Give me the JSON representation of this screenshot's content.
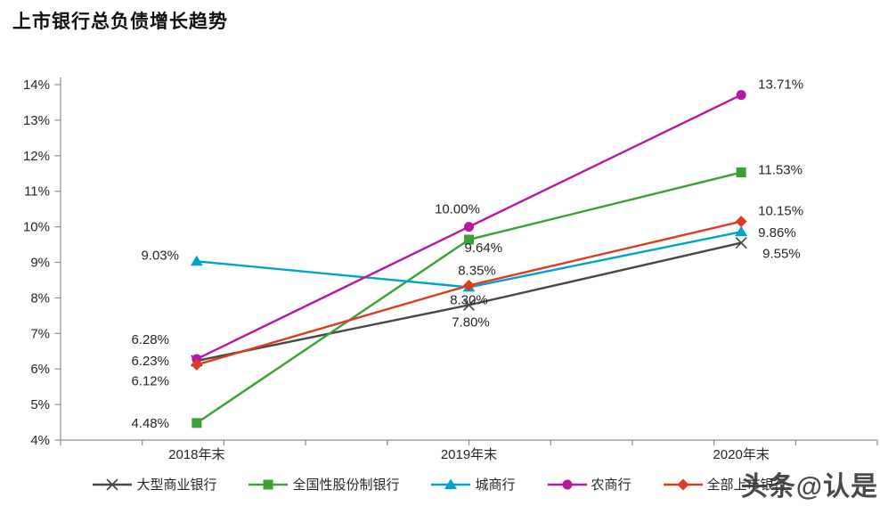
{
  "page": {
    "title": "上市银行总负债增长趋势",
    "watermark": "头条@认是"
  },
  "chart_data": {
    "type": "line",
    "title": "上市银行总负债增长趋势",
    "categories": [
      "2018年末",
      "2019年末",
      "2020年末"
    ],
    "series": [
      {
        "name": "大型商业银行",
        "marker": "x",
        "color": "#474747",
        "values": [
          6.23,
          7.8,
          9.55
        ],
        "labels": [
          "6.23%",
          "7.80%",
          "9.55%"
        ]
      },
      {
        "name": "全国性股份制银行",
        "marker": "square",
        "color": "#3ba135",
        "values": [
          4.48,
          9.64,
          11.53
        ],
        "labels": [
          "4.48%",
          "9.64%",
          "11.53%"
        ]
      },
      {
        "name": "城商行",
        "marker": "triangle",
        "color": "#00a3cc",
        "values": [
          9.03,
          8.3,
          9.86
        ],
        "labels": [
          "9.03%",
          "8.30%",
          "9.86%"
        ]
      },
      {
        "name": "农商行",
        "marker": "circle",
        "color": "#b817a0",
        "values": [
          6.28,
          10.0,
          13.71
        ],
        "labels": [
          "6.28%",
          "10.00%",
          "13.71%"
        ]
      },
      {
        "name": "全部上市银行",
        "marker": "diamond",
        "color": "#dd3b22",
        "values": [
          6.12,
          8.35,
          10.15
        ],
        "labels": [
          "6.12%",
          "8.35%",
          "10.15%"
        ]
      }
    ],
    "ylim": [
      4,
      14
    ],
    "ytick_labels": [
      "4%",
      "5%",
      "6%",
      "7%",
      "8%",
      "9%",
      "10%",
      "11%",
      "12%",
      "13%",
      "14%"
    ],
    "xlabel": "",
    "ylabel": "",
    "grid": false,
    "legend_position": "bottom",
    "colors": {
      "axis": "#8c8c8c",
      "text": "#262626",
      "data_label": "#262626"
    }
  }
}
